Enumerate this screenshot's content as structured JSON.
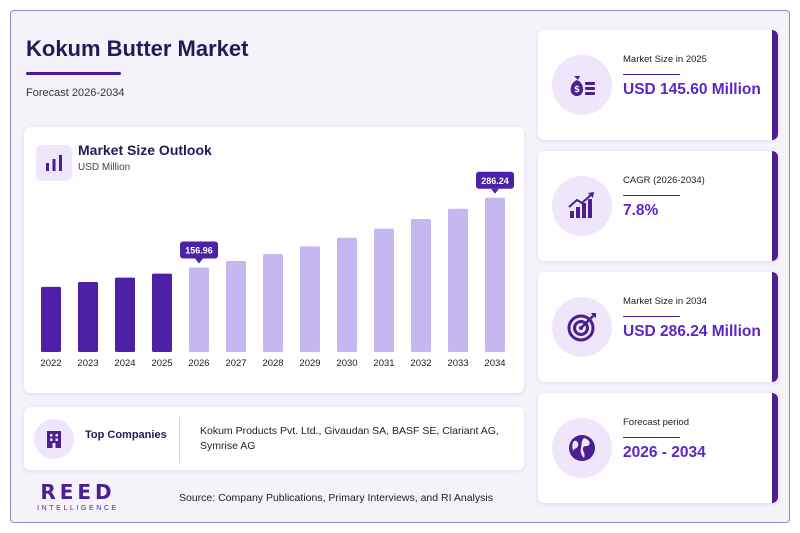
{
  "header": {
    "title": "Kokum Butter Market",
    "subtitle": "Forecast 2026-2034"
  },
  "chart_card": {
    "title": "Market Size Outlook",
    "unit": "USD Million",
    "icon": "bar-chart-icon"
  },
  "chart_data": {
    "type": "bar",
    "title": "Market Size Outlook",
    "ylabel": "USD Million",
    "categories": [
      "2022",
      "2023",
      "2024",
      "2025",
      "2026",
      "2027",
      "2028",
      "2029",
      "2030",
      "2031",
      "2032",
      "2033",
      "2034"
    ],
    "values": [
      121.0,
      130.0,
      138.0,
      145.6,
      156.96,
      169.0,
      182.0,
      196.0,
      212.0,
      229.0,
      247.0,
      266.0,
      286.24
    ],
    "series_kind": [
      "historical",
      "historical",
      "historical",
      "historical",
      "forecast",
      "forecast",
      "forecast",
      "forecast",
      "forecast",
      "forecast",
      "forecast",
      "forecast",
      "forecast"
    ],
    "data_labels": [
      {
        "category": "2026",
        "text": "156.96"
      },
      {
        "category": "2034",
        "text": "286.24"
      }
    ],
    "ylim": [
      0,
      310
    ],
    "grid": false,
    "colors": {
      "historical": "#4d21a6",
      "forecast": "#c7b7f0",
      "label_bg": "#4d21a6"
    }
  },
  "companies": {
    "label": "Top Companies",
    "icon": "building-icon",
    "text": "Kokum Products Pvt. Ltd., Givaudan SA, BASF SE, Clariant AG, Symrise AG"
  },
  "stats": [
    {
      "label": "Market Size in 2025",
      "value": "USD 145.60 Million",
      "icon": "money-bag-icon"
    },
    {
      "label": "CAGR (2026-2034)",
      "value": "7.8%",
      "icon": "growth-chart-icon"
    },
    {
      "label": "Market Size in 2034",
      "value": "USD 286.24 Million",
      "icon": "target-icon"
    },
    {
      "label": "Forecast period",
      "value": "2026 - 2034",
      "icon": "globe-icon"
    }
  ],
  "footer": {
    "brand": "REED",
    "brand_sub": "INTELLIGENCE",
    "source": "Source: Company Publications, Primary Interviews, and RI Analysis"
  },
  "colors": {
    "accent": "#4b1f8f",
    "value_text": "#5a27c4",
    "title_text": "#231a55",
    "icon_bg": "#efe6fb"
  }
}
